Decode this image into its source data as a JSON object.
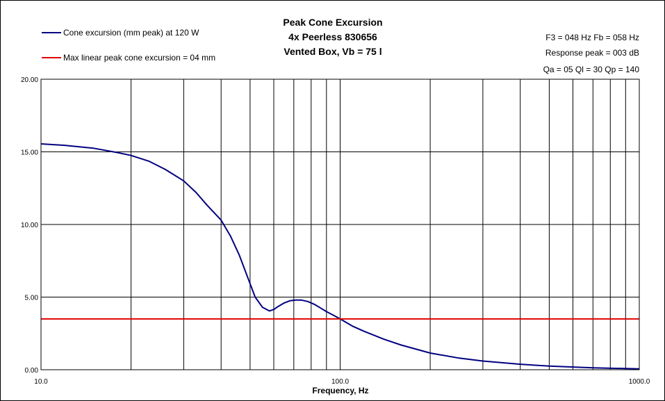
{
  "chart_data": {
    "type": "line",
    "title": [
      "Peak Cone Excursion",
      "4x Peerless 830656",
      "Vented Box, Vb = 75 l"
    ],
    "info": [
      "F3 = 048 Hz  Fb = 058 Hz",
      "Response peak = 003 dB",
      "Qa = 05  Ql = 30  Qp = 140"
    ],
    "xlabel": "Frequency, Hz",
    "ylabel": "",
    "x_scale": "log",
    "xlim": [
      10,
      1000
    ],
    "ylim": [
      0,
      20
    ],
    "x_ticks": [
      10,
      100,
      1000
    ],
    "x_tick_labels": [
      "10.0",
      "100.0",
      "1000.0"
    ],
    "y_ticks": [
      0,
      5,
      10,
      15,
      20
    ],
    "y_tick_labels": [
      "0.00",
      "5.00",
      "10.00",
      "15.00",
      "20.00"
    ],
    "grid": true,
    "legend_position": "top-left",
    "series": [
      {
        "name": "Cone excursion (mm peak) at 120 W",
        "color": "#000080",
        "x": [
          10,
          12,
          15,
          18,
          20,
          23,
          26,
          30,
          33,
          36,
          40,
          43,
          46,
          49,
          52,
          55,
          58,
          60,
          62,
          65,
          68,
          71,
          74,
          78,
          82,
          86,
          90,
          95,
          100,
          110,
          120,
          140,
          160,
          200,
          250,
          300,
          400,
          500,
          700,
          1000
        ],
        "values": [
          15.55,
          15.45,
          15.25,
          14.95,
          14.75,
          14.35,
          13.8,
          13.0,
          12.2,
          11.3,
          10.3,
          9.2,
          7.9,
          6.4,
          5.0,
          4.3,
          4.05,
          4.15,
          4.35,
          4.6,
          4.75,
          4.8,
          4.8,
          4.7,
          4.5,
          4.25,
          4.0,
          3.75,
          3.5,
          3.0,
          2.65,
          2.1,
          1.7,
          1.15,
          0.8,
          0.6,
          0.38,
          0.25,
          0.13,
          0.06
        ]
      },
      {
        "name": "Max linear peak cone excursion = 04 mm",
        "color": "#e00000",
        "x": [
          10,
          1000
        ],
        "values": [
          3.5,
          3.5
        ]
      }
    ]
  }
}
